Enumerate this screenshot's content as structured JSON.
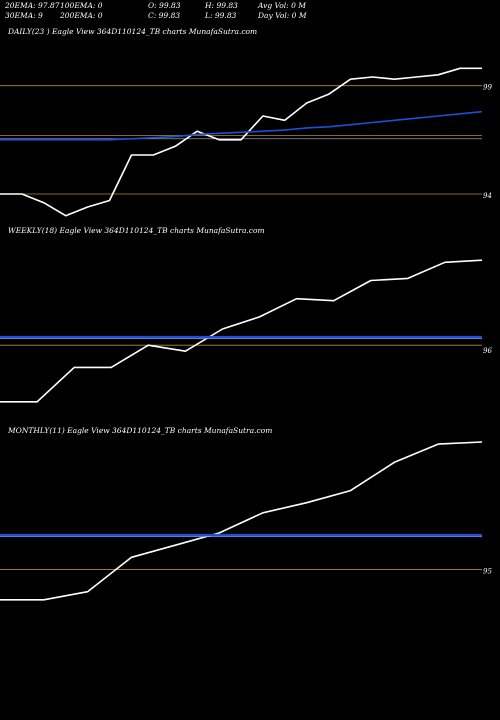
{
  "header": {
    "row1": [
      "20EMA: 97.87",
      "100EMA: 0",
      "O: 99.83",
      "H: 99.83",
      "Avg Vol: 0  M"
    ],
    "row2": [
      "30EMA: 9",
      "200EMA: 0",
      "C: 99.83",
      "L: 99.83",
      "Day Vol: 0  M"
    ]
  },
  "colors": {
    "background": "#000000",
    "price_line": "#ffffff",
    "ema_line": "#1e4fd8",
    "level_line": "#b8863a",
    "gray_line": "#9a9a9a"
  },
  "chart_data": [
    {
      "type": "line",
      "title": "DAILY(23                              ) Eagle  View  364D110124_TB charts MunafaSutra.com",
      "yticks": [
        "99",
        "94"
      ],
      "ylim": [
        92.8,
        101.2
      ],
      "x": [
        1,
        2,
        3,
        4,
        5,
        6,
        7,
        8,
        9,
        10,
        11,
        12,
        13,
        14,
        15,
        16,
        17,
        18,
        19,
        20,
        21,
        22,
        23
      ],
      "series": [
        {
          "values": [
            94.0,
            94.0,
            93.6,
            93.0,
            93.4,
            93.7,
            95.8,
            95.8,
            96.2,
            96.9,
            96.5,
            96.5,
            97.6,
            97.4,
            98.2,
            98.6,
            99.3,
            99.4,
            99.3,
            99.4,
            99.5,
            99.8,
            99.8
          ]
        },
        {
          "values": [
            96.5,
            96.5,
            96.5,
            96.5,
            96.5,
            96.5,
            96.55,
            96.6,
            96.65,
            96.75,
            96.8,
            96.85,
            96.9,
            96.95,
            97.05,
            97.1,
            97.2,
            97.3,
            97.4,
            97.5,
            97.6,
            97.7,
            97.8
          ]
        }
      ],
      "levels": [
        99.0,
        96.7,
        94.0
      ]
    },
    {
      "type": "line",
      "title": "WEEKLY(18) Eagle  View  364D110124_TB charts MunafaSutra.com",
      "yticks": [
        "96"
      ],
      "ylim": [
        92.5,
        101.5
      ],
      "x": [
        1,
        2,
        3,
        4,
        5,
        6,
        7,
        8,
        9,
        10,
        11,
        12,
        13,
        14
      ],
      "series": [
        {
          "values": [
            93.4,
            93.4,
            95.1,
            95.1,
            96.2,
            95.9,
            97.0,
            97.6,
            98.5,
            98.4,
            99.4,
            99.5,
            100.3,
            100.4
          ]
        },
        {
          "values": [
            96.6,
            96.6,
            96.6,
            96.6,
            96.6,
            96.6,
            96.6,
            96.6,
            96.6,
            96.6,
            96.6,
            96.6,
            96.6,
            96.6
          ]
        }
      ],
      "levels": [
        96.2
      ]
    },
    {
      "type": "line",
      "title": "MONTHLY(11) Eagle  View  364D110124_TB charts MunafaSutra.com",
      "yticks": [
        "95"
      ],
      "ylim": [
        92.5,
        101.5
      ],
      "x": [
        1,
        2,
        3,
        4,
        5,
        6,
        7,
        8,
        9,
        10,
        11,
        12
      ],
      "series": [
        {
          "values": [
            93.5,
            93.5,
            93.9,
            95.6,
            96.2,
            96.8,
            97.8,
            98.3,
            98.9,
            100.3,
            101.2,
            101.3
          ]
        },
        {
          "values": [
            96.7,
            96.7,
            96.7,
            96.7,
            96.7,
            96.7,
            96.7,
            96.7,
            96.7,
            96.7,
            96.7,
            96.7
          ]
        }
      ],
      "levels": [
        95.0
      ]
    }
  ]
}
